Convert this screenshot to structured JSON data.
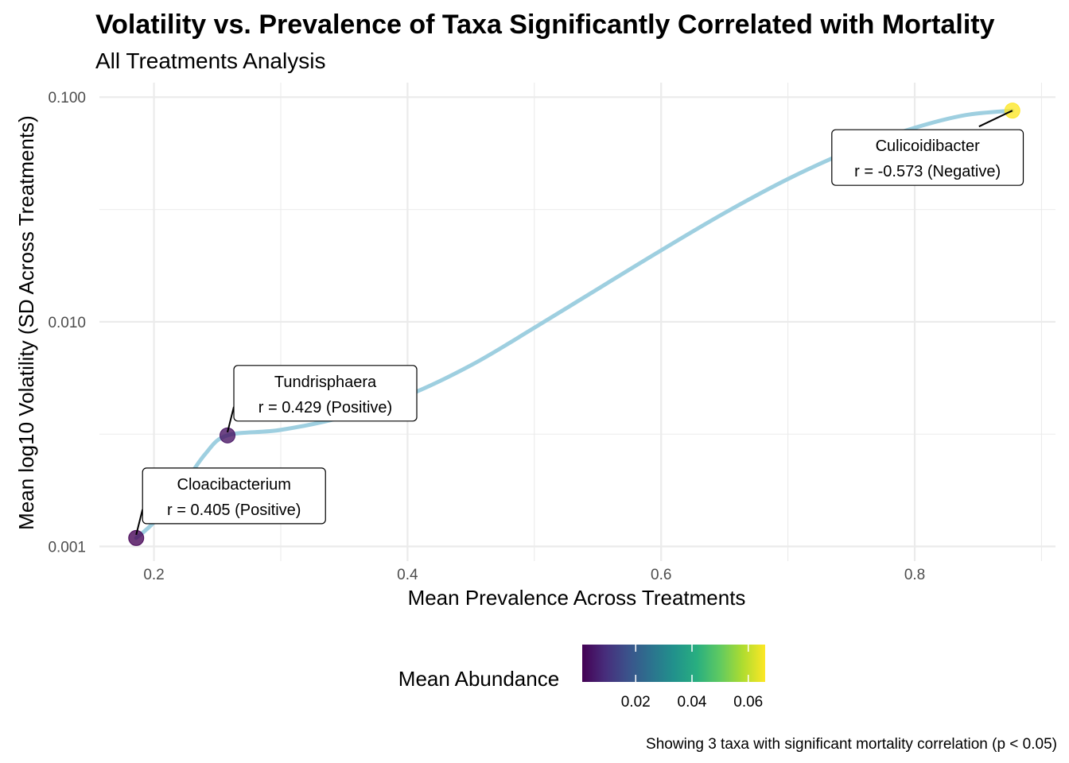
{
  "chart_data": {
    "type": "scatter",
    "title": "Volatility vs. Prevalence of Taxa Significantly Correlated with Mortality",
    "subtitle": "All Treatments Analysis",
    "xlabel": "Mean Prevalence Across Treatments",
    "ylabel": "Mean log10 Volatility (SD Across Treatments)",
    "x_ticks": [
      "0.2",
      "0.4",
      "0.6",
      "0.8"
    ],
    "x_tick_values": [
      0.2,
      0.4,
      0.6,
      0.8
    ],
    "x_minor_values": [
      0.3,
      0.5,
      0.7,
      0.9
    ],
    "xlim": [
      0.157,
      0.911
    ],
    "y_scale": "log10",
    "y_ticks": [
      "0.001",
      "0.010",
      "0.100"
    ],
    "y_tick_values": [
      0.001,
      0.01,
      0.1
    ],
    "y_minor_values": [
      0.00316,
      0.0316
    ],
    "ylim": [
      0.00086,
      0.116
    ],
    "grid": true,
    "points": [
      {
        "taxon": "Cloacibacterium",
        "x": 0.186,
        "y": 0.00109,
        "mean_abundance": 0.001,
        "label_line2": "r = 0.405 (Positive)"
      },
      {
        "taxon": "Tundrisphaera",
        "x": 0.258,
        "y": 0.00312,
        "mean_abundance": 0.004,
        "label_line2": "r = 0.429 (Positive)"
      },
      {
        "taxon": "Culicoidibacter",
        "x": 0.877,
        "y": 0.0871,
        "mean_abundance": 0.066,
        "label_line2": "r = -0.573 (Negative)"
      }
    ],
    "trend_line": {
      "color": "#9ecfe0",
      "x": [
        0.186,
        0.2,
        0.22,
        0.24,
        0.258,
        0.3,
        0.35,
        0.4,
        0.45,
        0.5,
        0.55,
        0.6,
        0.65,
        0.7,
        0.75,
        0.8,
        0.84,
        0.877
      ],
      "y": [
        0.00109,
        0.00128,
        0.00176,
        0.00256,
        0.00312,
        0.0033,
        0.00378,
        0.0047,
        0.0064,
        0.0094,
        0.014,
        0.0208,
        0.0305,
        0.0432,
        0.058,
        0.073,
        0.0832,
        0.0871
      ]
    },
    "legend": {
      "title": "Mean Abundance",
      "placement": "bottom",
      "type": "colorbar",
      "palette": "viridis",
      "range": [
        0.001,
        0.066
      ],
      "ticks": [
        "0.02",
        "0.04",
        "0.06"
      ],
      "tick_values": [
        0.02,
        0.04,
        0.06
      ]
    },
    "caption": "Showing 3 taxa with significant mortality correlation (p < 0.05)"
  }
}
